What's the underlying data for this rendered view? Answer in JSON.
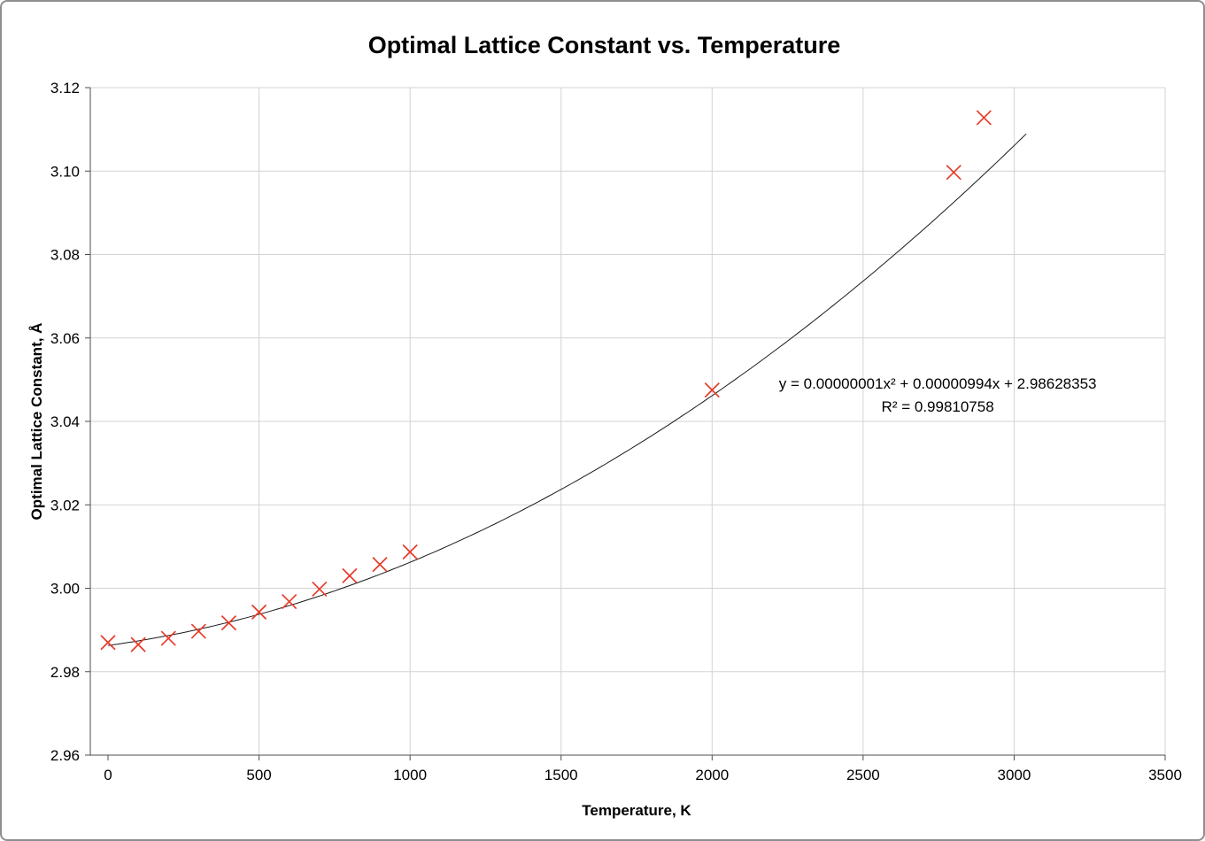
{
  "chart_data": {
    "type": "scatter",
    "title": "Optimal Lattice Constant vs. Temperature",
    "xlabel": "Temperature, K",
    "ylabel": "Optimal Lattice Constant, Å",
    "xlim": [
      0,
      3500
    ],
    "ylim": [
      2.96,
      3.12
    ],
    "x_tick_labels": [
      "0",
      "500",
      "1000",
      "1500",
      "2000",
      "2500",
      "3000",
      "3500"
    ],
    "y_tick_labels": [
      "2.96",
      "2.98",
      "3.00",
      "3.02",
      "3.04",
      "3.06",
      "3.08",
      "3.10",
      "3.12"
    ],
    "grid": true,
    "legend": "none",
    "colors": {
      "background": "#ffffff",
      "gridline": "#d3d3d3",
      "axis": "#4d4d4d",
      "text": "#000000"
    },
    "marker": {
      "shape": "x",
      "color": "#e73b28",
      "size": 8
    },
    "points": [
      {
        "x": 0,
        "y": 2.987
      },
      {
        "x": 100,
        "y": 2.9865
      },
      {
        "x": 200,
        "y": 2.988
      },
      {
        "x": 300,
        "y": 2.9897
      },
      {
        "x": 400,
        "y": 2.9917
      },
      {
        "x": 500,
        "y": 2.9943
      },
      {
        "x": 600,
        "y": 2.9968
      },
      {
        "x": 700,
        "y": 2.9998
      },
      {
        "x": 800,
        "y": 3.003
      },
      {
        "x": 900,
        "y": 3.0057
      },
      {
        "x": 1000,
        "y": 3.0087
      },
      {
        "x": 2000,
        "y": 3.0475
      },
      {
        "x": 2800,
        "y": 3.0997
      },
      {
        "x": 2900,
        "y": 3.1128
      }
    ],
    "trendline": {
      "type": "polynomial",
      "order": 2,
      "coefficients": {
        "a2": 1e-08,
        "a1": 9.94e-06,
        "a0": 2.98628353
      },
      "x_range": [
        0,
        3040
      ],
      "color": "#1a1a1a",
      "equation_label": "y = 0.00000001x² + 0.00000994x + 2.98628353",
      "r_squared_label": "R² = 0.99810758",
      "annotation": {
        "x": 2747,
        "y": 3.0478,
        "line_height": 26
      }
    }
  }
}
